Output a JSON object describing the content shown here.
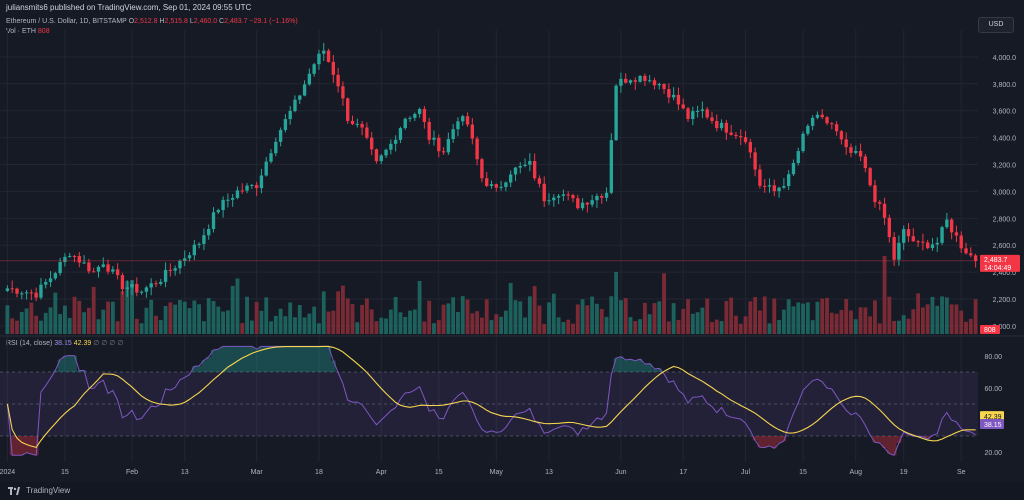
{
  "header": {
    "published": "juliansmits6 published on TradingView.com, Sep 01, 2024 09:55 UTC",
    "currency_button": "USD"
  },
  "legend": {
    "symbol": "Ethereum / U.S. Dollar, 1D, BITSTAMP",
    "o_label": "O",
    "o_value": "2,512.8",
    "h_label": "H",
    "h_value": "2,515.8",
    "l_label": "L",
    "l_value": "2,460.0",
    "c_label": "C",
    "c_value": "2,483.7",
    "change": "−29.1 (−1.16%)",
    "vol_label": "Vol · ETH",
    "vol_value": "808",
    "rsi_label": "RSI (14, close)",
    "rsi_value": "38.15",
    "rsi_ma_value": "42.39",
    "rsi_extras": "∅ ∅ ∅ ∅"
  },
  "price_badge": {
    "price": "2,483.7",
    "countdown": "14:04:49"
  },
  "volume_badge": "808",
  "rsi_badges": {
    "ma": "42.39",
    "rsi": "38.15"
  },
  "footer": {
    "brand": "TradingView"
  },
  "colors": {
    "up": "#26a69a",
    "down": "#f23645",
    "rsi": "#7e57c2",
    "rsi_ma": "#f7d54f",
    "background": "#161a25",
    "grid": "#232632"
  },
  "chart_data": [
    {
      "type": "candlestick",
      "title": "Ethereum / U.S. Dollar, 1D, BITSTAMP",
      "y_ticks": [
        "2,000.0",
        "2,200.0",
        "2,400.0",
        "2,600.0",
        "2,800.0",
        "3,000.0",
        "3,200.0",
        "3,400.0",
        "3,600.0",
        "3,800.0",
        "4,000.0"
      ],
      "y_tick_values": [
        2000,
        2200,
        2400,
        2600,
        2800,
        3000,
        3200,
        3400,
        3600,
        3800,
        4000
      ],
      "ylim": [
        1940,
        4200
      ],
      "x_ticks": [
        "2024",
        "15",
        "Feb",
        "13",
        "Mar",
        "18",
        "Apr",
        "15",
        "May",
        "13",
        "Jun",
        "17",
        "Jul",
        "15",
        "Aug",
        "19",
        "Se"
      ],
      "last_close": 2483.7,
      "anchors": [
        [
          0,
          2280
        ],
        [
          6,
          2240
        ],
        [
          9,
          2360
        ],
        [
          13,
          2550
        ],
        [
          18,
          2400
        ],
        [
          20,
          2480
        ],
        [
          24,
          2300
        ],
        [
          28,
          2260
        ],
        [
          32,
          2350
        ],
        [
          36,
          2480
        ],
        [
          40,
          2620
        ],
        [
          44,
          2880
        ],
        [
          48,
          3000
        ],
        [
          52,
          3050
        ],
        [
          56,
          3400
        ],
        [
          60,
          3650
        ],
        [
          64,
          3950
        ],
        [
          66,
          4050
        ],
        [
          69,
          3800
        ],
        [
          71,
          3550
        ],
        [
          74,
          3450
        ],
        [
          77,
          3200
        ],
        [
          80,
          3350
        ],
        [
          83,
          3550
        ],
        [
          86,
          3600
        ],
        [
          88,
          3400
        ],
        [
          91,
          3300
        ],
        [
          94,
          3550
        ],
        [
          96,
          3500
        ],
        [
          99,
          3100
        ],
        [
          102,
          3000
        ],
        [
          105,
          3150
        ],
        [
          109,
          3200
        ],
        [
          112,
          2950
        ],
        [
          115,
          3000
        ],
        [
          119,
          2900
        ],
        [
          122,
          2950
        ],
        [
          125,
          3000
        ],
        [
          127,
          3800
        ],
        [
          130,
          3850
        ],
        [
          133,
          3850
        ],
        [
          136,
          3800
        ],
        [
          139,
          3700
        ],
        [
          142,
          3550
        ],
        [
          145,
          3600
        ],
        [
          148,
          3500
        ],
        [
          151,
          3450
        ],
        [
          154,
          3400
        ],
        [
          157,
          3050
        ],
        [
          160,
          3000
        ],
        [
          163,
          3100
        ],
        [
          166,
          3400
        ],
        [
          168,
          3550
        ],
        [
          172,
          3500
        ],
        [
          175,
          3300
        ],
        [
          178,
          3250
        ],
        [
          181,
          2950
        ],
        [
          183,
          2800
        ],
        [
          185,
          2500
        ],
        [
          187,
          2700
        ],
        [
          190,
          2600
        ],
        [
          194,
          2620
        ],
        [
          196,
          2780
        ],
        [
          199,
          2600
        ],
        [
          202,
          2483.7
        ]
      ]
    },
    {
      "type": "bar",
      "title": "Vol · ETH",
      "last_value": 808
    },
    {
      "type": "line",
      "title": "RSI (14, close)",
      "series": [
        {
          "name": "RSI",
          "last": 38.15
        },
        {
          "name": "MA",
          "last": 42.39
        }
      ],
      "y_ticks": [
        "80.00",
        "60.00",
        "40.00",
        "20.00"
      ],
      "y_tick_values": [
        80,
        60,
        40,
        20
      ],
      "ylim": [
        15,
        85
      ],
      "bands": [
        70,
        50,
        30
      ]
    }
  ]
}
